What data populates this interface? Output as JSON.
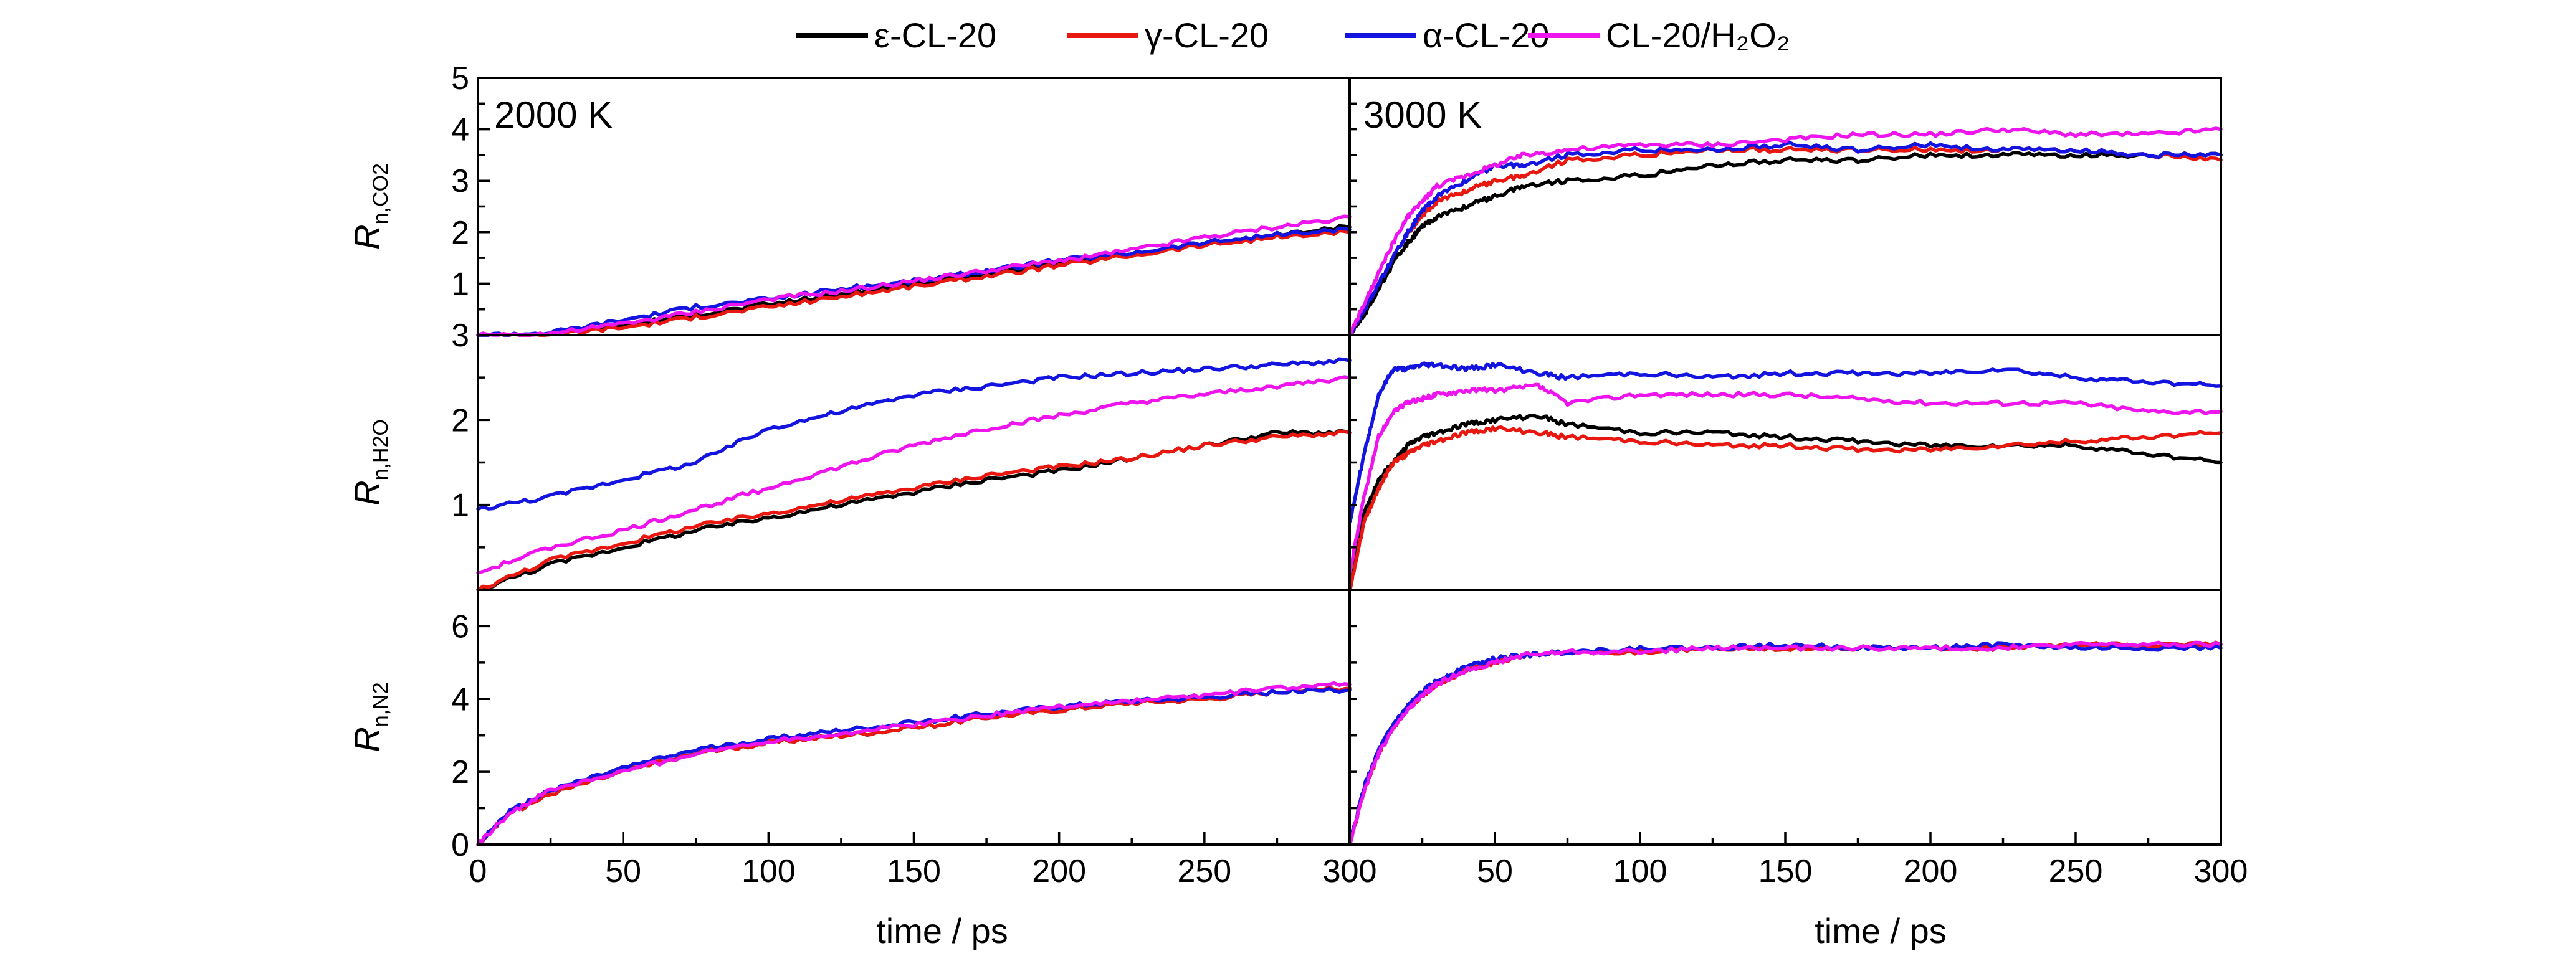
{
  "legend": [
    {
      "label": "ε-CL-20",
      "color": "#000000"
    },
    {
      "label": "γ-CL-20",
      "color": "#e8170f"
    },
    {
      "label": "α-CL-20",
      "color": "#1414e0"
    },
    {
      "label": "CL-20/H₂O₂",
      "color": "#ee14ee"
    }
  ],
  "panel_labels": [
    "2000 K",
    "3000 K"
  ],
  "row_ylabels": [
    {
      "main": "R",
      "sub": "n,CO2"
    },
    {
      "main": "R",
      "sub": "n,H2O"
    },
    {
      "main": "R",
      "sub": "n,N2"
    }
  ],
  "xlabel": "time / ps",
  "chart_data": [
    {
      "type": "line",
      "panel": "2000 K",
      "row": "CO2",
      "xlim": [
        0,
        300
      ],
      "ylim": [
        0,
        5
      ],
      "yticks": [
        "1",
        "2",
        "3",
        "4",
        "5"
      ],
      "x": [
        0,
        25,
        50,
        75,
        100,
        125,
        150,
        175,
        200,
        225,
        250,
        275,
        300
      ],
      "series": [
        {
          "name": "ε-CL-20",
          "values": [
            0,
            0.02,
            0.2,
            0.4,
            0.6,
            0.8,
            1.0,
            1.2,
            1.4,
            1.6,
            1.8,
            1.95,
            2.1
          ]
        },
        {
          "name": "γ-CL-20",
          "values": [
            0,
            0.02,
            0.15,
            0.35,
            0.55,
            0.75,
            0.95,
            1.15,
            1.35,
            1.55,
            1.75,
            1.9,
            2.0
          ]
        },
        {
          "name": "α-CL-20",
          "values": [
            0,
            0.05,
            0.3,
            0.55,
            0.7,
            0.9,
            1.05,
            1.25,
            1.45,
            1.6,
            1.8,
            1.95,
            2.05
          ]
        },
        {
          "name": "CL-20/H₂O₂",
          "values": [
            0,
            0.03,
            0.22,
            0.45,
            0.7,
            0.85,
            1.05,
            1.25,
            1.45,
            1.65,
            1.9,
            2.1,
            2.3
          ]
        }
      ]
    },
    {
      "type": "line",
      "panel": "3000 K",
      "row": "CO2",
      "xlim": [
        0,
        300
      ],
      "ylim": [
        0,
        5
      ],
      "x": [
        0,
        5,
        10,
        15,
        20,
        25,
        30,
        40,
        50,
        60,
        75,
        100,
        125,
        150,
        175,
        200,
        225,
        250,
        275,
        300
      ],
      "series": [
        {
          "name": "ε-CL-20",
          "values": [
            0,
            0.4,
            0.9,
            1.4,
            1.8,
            2.1,
            2.3,
            2.5,
            2.7,
            2.9,
            3.0,
            3.1,
            3.3,
            3.4,
            3.4,
            3.5,
            3.5,
            3.5,
            3.5,
            3.5
          ]
        },
        {
          "name": "γ-CL-20",
          "values": [
            0,
            0.5,
            1.0,
            1.5,
            2.0,
            2.3,
            2.6,
            2.8,
            3.0,
            3.1,
            3.4,
            3.5,
            3.6,
            3.6,
            3.6,
            3.6,
            3.6,
            3.6,
            3.5,
            3.4
          ]
        },
        {
          "name": "α-CL-20",
          "values": [
            0,
            0.5,
            1.0,
            1.5,
            2.0,
            2.4,
            2.7,
            3.0,
            3.3,
            3.3,
            3.5,
            3.6,
            3.6,
            3.7,
            3.6,
            3.7,
            3.6,
            3.6,
            3.5,
            3.5
          ]
        },
        {
          "name": "CL-20/H₂O₂",
          "values": [
            0,
            0.6,
            1.2,
            1.8,
            2.3,
            2.6,
            2.9,
            3.1,
            3.3,
            3.5,
            3.6,
            3.7,
            3.7,
            3.8,
            3.9,
            3.9,
            4.0,
            3.9,
            3.9,
            4.0
          ]
        }
      ]
    },
    {
      "type": "line",
      "panel": "2000 K",
      "row": "H2O",
      "xlim": [
        0,
        300
      ],
      "ylim": [
        0,
        3
      ],
      "yticks": [
        "1",
        "2",
        "3"
      ],
      "x": [
        0,
        25,
        50,
        75,
        100,
        125,
        150,
        175,
        200,
        225,
        250,
        275,
        300
      ],
      "series": [
        {
          "name": "ε-CL-20",
          "values": [
            0,
            0.3,
            0.5,
            0.7,
            0.85,
            1.0,
            1.15,
            1.3,
            1.4,
            1.55,
            1.7,
            1.85,
            1.85
          ]
        },
        {
          "name": "γ-CL-20",
          "values": [
            0,
            0.35,
            0.55,
            0.75,
            0.9,
            1.05,
            1.2,
            1.35,
            1.45,
            1.55,
            1.7,
            1.8,
            1.85
          ]
        },
        {
          "name": "α-CL-20",
          "values": [
            0.95,
            1.1,
            1.3,
            1.5,
            1.9,
            2.1,
            2.3,
            2.4,
            2.5,
            2.55,
            2.6,
            2.65,
            2.7
          ]
        },
        {
          "name": "CL-20/H₂O₂",
          "values": [
            0.2,
            0.5,
            0.7,
            0.95,
            1.2,
            1.45,
            1.7,
            1.9,
            2.05,
            2.2,
            2.3,
            2.4,
            2.5
          ]
        }
      ]
    },
    {
      "type": "line",
      "panel": "3000 K",
      "row": "H2O",
      "xlim": [
        0,
        300
      ],
      "ylim": [
        0,
        3
      ],
      "x": [
        0,
        5,
        10,
        15,
        20,
        25,
        30,
        40,
        50,
        65,
        75,
        100,
        125,
        150,
        175,
        200,
        225,
        250,
        275,
        300
      ],
      "series": [
        {
          "name": "ε-CL-20",
          "values": [
            0,
            0.9,
            1.3,
            1.5,
            1.7,
            1.8,
            1.85,
            1.95,
            2.0,
            2.05,
            1.95,
            1.85,
            1.85,
            1.8,
            1.75,
            1.7,
            1.7,
            1.7,
            1.6,
            1.5
          ]
        },
        {
          "name": "γ-CL-20",
          "values": [
            0,
            0.8,
            1.2,
            1.5,
            1.6,
            1.7,
            1.75,
            1.85,
            1.9,
            1.85,
            1.8,
            1.75,
            1.7,
            1.7,
            1.65,
            1.65,
            1.7,
            1.75,
            1.8,
            1.85
          ]
        },
        {
          "name": "α-CL-20",
          "values": [
            0.8,
            1.6,
            2.3,
            2.6,
            2.6,
            2.65,
            2.65,
            2.6,
            2.65,
            2.55,
            2.5,
            2.55,
            2.5,
            2.55,
            2.55,
            2.55,
            2.6,
            2.5,
            2.45,
            2.4
          ]
        },
        {
          "name": "CL-20/H₂O₂",
          "values": [
            0.2,
            1.1,
            1.8,
            2.1,
            2.2,
            2.25,
            2.3,
            2.35,
            2.35,
            2.4,
            2.2,
            2.3,
            2.3,
            2.3,
            2.25,
            2.2,
            2.2,
            2.2,
            2.1,
            2.1
          ]
        }
      ]
    },
    {
      "type": "line",
      "panel": "2000 K",
      "row": "N2",
      "xlim": [
        0,
        300
      ],
      "ylim": [
        0,
        7
      ],
      "yticks": [
        "0",
        "2",
        "4",
        "6"
      ],
      "x": [
        0,
        10,
        25,
        50,
        75,
        100,
        125,
        150,
        175,
        200,
        225,
        250,
        275,
        300
      ],
      "series": [
        {
          "name": "ε-CL-20",
          "values": [
            0,
            0.8,
            1.4,
            2.0,
            2.5,
            2.8,
            3.0,
            3.2,
            3.5,
            3.7,
            3.9,
            4.0,
            4.2,
            4.3
          ]
        },
        {
          "name": "γ-CL-20",
          "values": [
            0,
            0.8,
            1.4,
            2.0,
            2.5,
            2.8,
            3.0,
            3.2,
            3.5,
            3.7,
            3.9,
            4.0,
            4.2,
            4.3
          ]
        },
        {
          "name": "α-CL-20",
          "values": [
            0,
            0.85,
            1.5,
            2.1,
            2.6,
            2.9,
            3.15,
            3.35,
            3.6,
            3.8,
            3.95,
            4.05,
            4.2,
            4.25
          ]
        },
        {
          "name": "CL-20/H₂O₂",
          "values": [
            0,
            0.8,
            1.5,
            2.0,
            2.5,
            2.85,
            3.05,
            3.3,
            3.55,
            3.8,
            3.95,
            4.1,
            4.3,
            4.4
          ]
        }
      ]
    },
    {
      "type": "line",
      "panel": "3000 K",
      "row": "N2",
      "xlim": [
        0,
        300
      ],
      "ylim": [
        0,
        7
      ],
      "x": [
        0,
        5,
        10,
        15,
        20,
        25,
        30,
        40,
        50,
        60,
        75,
        100,
        125,
        150,
        175,
        200,
        225,
        250,
        275,
        300
      ],
      "series": [
        {
          "name": "ε-CL-20",
          "values": [
            0,
            1.5,
            2.5,
            3.2,
            3.7,
            4.1,
            4.4,
            4.8,
            5.0,
            5.2,
            5.3,
            5.3,
            5.4,
            5.4,
            5.4,
            5.4,
            5.4,
            5.5,
            5.5,
            5.5
          ]
        },
        {
          "name": "γ-CL-20",
          "values": [
            0,
            1.5,
            2.5,
            3.2,
            3.7,
            4.1,
            4.4,
            4.8,
            5.0,
            5.2,
            5.3,
            5.3,
            5.4,
            5.4,
            5.4,
            5.4,
            5.4,
            5.5,
            5.5,
            5.5
          ]
        },
        {
          "name": "α-CL-20",
          "values": [
            0,
            1.6,
            2.6,
            3.3,
            3.8,
            4.2,
            4.5,
            4.9,
            5.1,
            5.2,
            5.3,
            5.4,
            5.4,
            5.5,
            5.4,
            5.4,
            5.5,
            5.4,
            5.4,
            5.4
          ]
        },
        {
          "name": "CL-20/H₂O₂",
          "values": [
            0,
            1.5,
            2.5,
            3.2,
            3.7,
            4.1,
            4.4,
            4.8,
            5.0,
            5.2,
            5.3,
            5.3,
            5.4,
            5.4,
            5.4,
            5.4,
            5.4,
            5.5,
            5.5,
            5.5
          ]
        }
      ]
    }
  ],
  "xticks": [
    "0",
    "50",
    "100",
    "150",
    "200",
    "250",
    "300"
  ],
  "xticks_right": [
    "300",
    "50",
    "100",
    "150",
    "200",
    "250",
    "300"
  ]
}
